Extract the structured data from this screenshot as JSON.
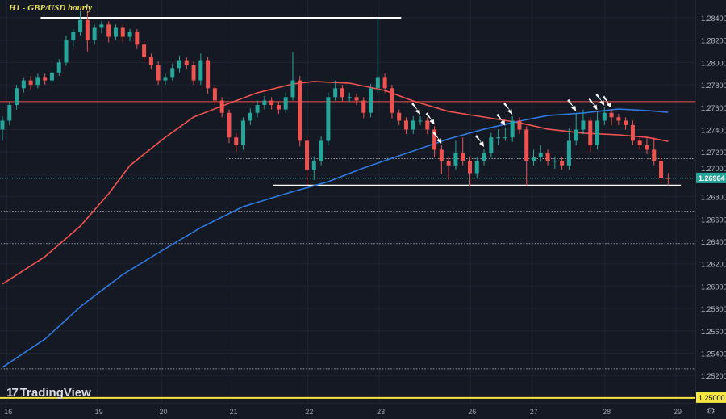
{
  "chart_data": {
    "type": "candlestick",
    "title": "H1 - GBP/USD hourly",
    "ylim": [
      1.249,
      1.2848
    ],
    "y_ticks": [
      "1.28400",
      "1.28200",
      "1.28000",
      "1.27800",
      "1.27600",
      "1.27400",
      "1.27200",
      "1.27000",
      "1.26800",
      "1.26600",
      "1.26400",
      "1.26200",
      "1.26000",
      "1.25800",
      "1.25600",
      "1.25400",
      "1.25200"
    ],
    "x_ticks": [
      {
        "label": "16",
        "index": 0.6
      },
      {
        "label": "19",
        "index": 13.4
      },
      {
        "label": "20",
        "index": 22.5
      },
      {
        "label": "21",
        "index": 32.4
      },
      {
        "label": "22",
        "index": 43.1
      },
      {
        "label": "23",
        "index": 53.2
      },
      {
        "label": "26",
        "index": 66.1
      },
      {
        "label": "27",
        "index": 74.8
      },
      {
        "label": "28",
        "index": 85.1
      },
      {
        "label": "29",
        "index": 95.1
      }
    ],
    "current_price": {
      "label": "1.26964",
      "value": 1.26964,
      "color": "#26a69a"
    },
    "level_1_25": {
      "label": "1.25000",
      "value": 1.25,
      "color": "#f5e642"
    },
    "colors": {
      "up": "#26a69a",
      "down": "#ef5350",
      "ma_red": "#ef5350",
      "ma_blue": "#2f7ae0",
      "background": "#151924"
    },
    "candles": [
      [
        1.274,
        1.2752,
        1.273,
        1.2748
      ],
      [
        1.2748,
        1.2765,
        1.2744,
        1.2762
      ],
      [
        1.2762,
        1.278,
        1.2758,
        1.2777
      ],
      [
        1.2777,
        1.2787,
        1.2773,
        1.2784
      ],
      [
        1.2784,
        1.2788,
        1.2776,
        1.278
      ],
      [
        1.278,
        1.279,
        1.2777,
        1.2787
      ],
      [
        1.2787,
        1.279,
        1.278,
        1.2784
      ],
      [
        1.2784,
        1.2795,
        1.2781,
        1.2791
      ],
      [
        1.2791,
        1.2803,
        1.2788,
        1.28
      ],
      [
        1.28,
        1.2824,
        1.2797,
        1.282
      ],
      [
        1.282,
        1.283,
        1.2814,
        1.2827
      ],
      [
        1.2827,
        1.2846,
        1.2824,
        1.2838
      ],
      [
        1.2838,
        1.2846,
        1.281,
        1.282
      ],
      [
        1.282,
        1.2834,
        1.2816,
        1.2831
      ],
      [
        1.2831,
        1.2837,
        1.2826,
        1.2834
      ],
      [
        1.2834,
        1.2837,
        1.2818,
        1.2823
      ],
      [
        1.2823,
        1.2834,
        1.282,
        1.2831
      ],
      [
        1.2831,
        1.2834,
        1.2818,
        1.2823
      ],
      [
        1.2823,
        1.283,
        1.2819,
        1.2827
      ],
      [
        1.2827,
        1.283,
        1.2812,
        1.2816
      ],
      [
        1.2816,
        1.2819,
        1.2801,
        1.2805
      ],
      [
        1.2805,
        1.2808,
        1.2794,
        1.2798
      ],
      [
        1.2798,
        1.2801,
        1.278,
        1.2784
      ],
      [
        1.2784,
        1.279,
        1.278,
        1.2787
      ],
      [
        1.2787,
        1.2799,
        1.2784,
        1.2795
      ],
      [
        1.2795,
        1.2806,
        1.2791,
        1.2802
      ],
      [
        1.2802,
        1.2805,
        1.2794,
        1.2798
      ],
      [
        1.2798,
        1.2801,
        1.278,
        1.2784
      ],
      [
        1.2784,
        1.2808,
        1.278,
        1.2802
      ],
      [
        1.2802,
        1.2805,
        1.2772,
        1.2777
      ],
      [
        1.2777,
        1.278,
        1.2762,
        1.2766
      ],
      [
        1.2766,
        1.2769,
        1.2751,
        1.2755
      ],
      [
        1.2755,
        1.2758,
        1.2728,
        1.2733
      ],
      [
        1.2733,
        1.2737,
        1.272,
        1.2726
      ],
      [
        1.2726,
        1.2751,
        1.2722,
        1.2748
      ],
      [
        1.2748,
        1.2759,
        1.2744,
        1.2755
      ],
      [
        1.2755,
        1.2766,
        1.2751,
        1.2762
      ],
      [
        1.2762,
        1.277,
        1.2758,
        1.2766
      ],
      [
        1.2766,
        1.2769,
        1.2758,
        1.2762
      ],
      [
        1.2762,
        1.2765,
        1.2754,
        1.2758
      ],
      [
        1.2758,
        1.2773,
        1.2755,
        1.2769
      ],
      [
        1.2769,
        1.2809,
        1.2766,
        1.2784
      ],
      [
        1.2784,
        1.2788,
        1.2725,
        1.273
      ],
      [
        1.273,
        1.2734,
        1.269,
        1.2704
      ],
      [
        1.2704,
        1.2716,
        1.2695,
        1.2712
      ],
      [
        1.2712,
        1.2734,
        1.2708,
        1.273
      ],
      [
        1.273,
        1.2773,
        1.2726,
        1.2769
      ],
      [
        1.2769,
        1.2784,
        1.2766,
        1.2777
      ],
      [
        1.2777,
        1.278,
        1.2765,
        1.2769
      ],
      [
        1.2769,
        1.2773,
        1.2765,
        1.2769
      ],
      [
        1.2769,
        1.2772,
        1.2762,
        1.2766
      ],
      [
        1.2766,
        1.2769,
        1.275,
        1.2755
      ],
      [
        1.2755,
        1.2781,
        1.2751,
        1.2777
      ],
      [
        1.2777,
        1.284,
        1.2773,
        1.2787
      ],
      [
        1.2787,
        1.279,
        1.2773,
        1.2777
      ],
      [
        1.2777,
        1.278,
        1.275,
        1.2755
      ],
      [
        1.2755,
        1.2758,
        1.2744,
        1.2748
      ],
      [
        1.2748,
        1.2751,
        1.2736,
        1.274
      ],
      [
        1.274,
        1.2752,
        1.2736,
        1.2748
      ],
      [
        1.2748,
        1.2752,
        1.2744,
        1.2748
      ],
      [
        1.2748,
        1.2751,
        1.2736,
        1.274
      ],
      [
        1.274,
        1.2743,
        1.2715,
        1.2722
      ],
      [
        1.2722,
        1.2726,
        1.27,
        1.2712
      ],
      [
        1.2712,
        1.2716,
        1.2695,
        1.2708
      ],
      [
        1.2708,
        1.273,
        1.2704,
        1.2719
      ],
      [
        1.2719,
        1.2733,
        1.2708,
        1.2712
      ],
      [
        1.2712,
        1.2716,
        1.2689,
        1.2701
      ],
      [
        1.2701,
        1.2716,
        1.2697,
        1.2712
      ],
      [
        1.2712,
        1.2723,
        1.2708,
        1.2719
      ],
      [
        1.2719,
        1.2737,
        1.2715,
        1.2733
      ],
      [
        1.2733,
        1.274,
        1.2726,
        1.2733
      ],
      [
        1.2733,
        1.2742,
        1.273,
        1.2733
      ],
      [
        1.2733,
        1.2752,
        1.2729,
        1.2748
      ],
      [
        1.2748,
        1.2751,
        1.2736,
        1.274
      ],
      [
        1.274,
        1.2743,
        1.269,
        1.2712
      ],
      [
        1.2712,
        1.2722,
        1.2708,
        1.2715
      ],
      [
        1.2715,
        1.2726,
        1.2711,
        1.2719
      ],
      [
        1.2719,
        1.2722,
        1.2708,
        1.2712
      ],
      [
        1.2712,
        1.2716,
        1.2705,
        1.2712
      ],
      [
        1.2712,
        1.2715,
        1.2704,
        1.2708
      ],
      [
        1.2708,
        1.2741,
        1.2704,
        1.273
      ],
      [
        1.273,
        1.2755,
        1.2726,
        1.274
      ],
      [
        1.274,
        1.2758,
        1.2736,
        1.2748
      ],
      [
        1.2748,
        1.2751,
        1.272,
        1.2726
      ],
      [
        1.2726,
        1.2756,
        1.2722,
        1.2748
      ],
      [
        1.2748,
        1.276,
        1.2744,
        1.2755
      ],
      [
        1.2755,
        1.2758,
        1.2744,
        1.2751
      ],
      [
        1.2751,
        1.2754,
        1.2744,
        1.2748
      ],
      [
        1.2748,
        1.2751,
        1.274,
        1.2744
      ],
      [
        1.2744,
        1.2748,
        1.2726,
        1.273
      ],
      [
        1.273,
        1.2734,
        1.2722,
        1.2726
      ],
      [
        1.2726,
        1.2733,
        1.2718,
        1.2722
      ],
      [
        1.2722,
        1.2733,
        1.2708,
        1.2712
      ],
      [
        1.2712,
        1.2716,
        1.2692,
        1.2697
      ],
      [
        1.2697,
        1.2701,
        1.269,
        1.2696
      ]
    ],
    "moving_averages": [
      {
        "color": "#ef5350",
        "points": [
          [
            0,
            1.26018
          ],
          [
            6,
            1.26263
          ],
          [
            11,
            1.26537
          ],
          [
            15,
            1.26826
          ],
          [
            18,
            1.27079
          ],
          [
            23,
            1.27331
          ],
          [
            27,
            1.27512
          ],
          [
            32,
            1.27635
          ],
          [
            36,
            1.27729
          ],
          [
            41,
            1.27808
          ],
          [
            44,
            1.2783
          ],
          [
            49,
            1.27815
          ],
          [
            54,
            1.2775
          ],
          [
            58,
            1.27656
          ],
          [
            63,
            1.27562
          ],
          [
            68,
            1.27512
          ],
          [
            73,
            1.27461
          ],
          [
            77,
            1.27404
          ],
          [
            82,
            1.27368
          ],
          [
            87,
            1.27353
          ],
          [
            91,
            1.27331
          ],
          [
            94,
            1.27295
          ]
        ]
      },
      {
        "color": "#2f7ae0",
        "points": [
          [
            0,
            1.25274
          ],
          [
            6,
            1.25526
          ],
          [
            11,
            1.25815
          ],
          [
            17,
            1.26104
          ],
          [
            23,
            1.26335
          ],
          [
            28,
            1.26523
          ],
          [
            34,
            1.26711
          ],
          [
            40,
            1.26826
          ],
          [
            46,
            1.26934
          ],
          [
            51,
            1.27057
          ],
          [
            57,
            1.27187
          ],
          [
            63,
            1.27317
          ],
          [
            68,
            1.27404
          ],
          [
            73,
            1.27476
          ],
          [
            77,
            1.27526
          ],
          [
            82,
            1.27548
          ],
          [
            87,
            1.27584
          ],
          [
            91,
            1.2757
          ],
          [
            94,
            1.27555
          ]
        ]
      }
    ],
    "horizontal_lines": [
      {
        "value": 1.284,
        "from": 5.4,
        "to": 56.3,
        "color": "#ffffff",
        "style": "solid"
      },
      {
        "value": 1.269,
        "from": 38.2,
        "to": 95.8,
        "color": "#ffffff",
        "style": "solid"
      },
      {
        "value": 1.2765,
        "from": -1,
        "to": 98,
        "color": "#ef5350",
        "style": "thin"
      },
      {
        "value": 1.2714,
        "from": 31.6,
        "to": 98,
        "color": "#9aa0ab",
        "style": "dotted"
      },
      {
        "value": 1.2667,
        "from": -1,
        "to": 98,
        "color": "#9aa0ab",
        "style": "dotted"
      },
      {
        "value": 1.2638,
        "from": -1,
        "to": 98,
        "color": "#9aa0ab",
        "style": "dotted"
      },
      {
        "value": 1.2526,
        "from": -1,
        "to": 98,
        "color": "#9aa0ab",
        "style": "dotted"
      }
    ],
    "arrow_annotations": [
      59,
      61,
      62,
      68,
      71,
      72,
      81,
      84,
      85,
      86
    ]
  },
  "branding": {
    "logo_text": "TradingView"
  }
}
